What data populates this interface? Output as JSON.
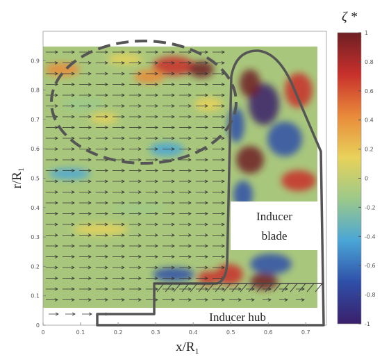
{
  "chart_data": {
    "type": "vector-field",
    "x_label": "x/R₁",
    "y_label": "r/R₁",
    "xlim": [
      0,
      0.755
    ],
    "ylim": [
      0,
      1.0
    ],
    "xticks": [
      0,
      0.1,
      0.2,
      0.3,
      0.4,
      0.5,
      0.6,
      0.7
    ],
    "yticks": [
      0,
      0.1,
      0.2,
      0.3,
      0.4,
      0.5,
      0.6,
      0.7,
      0.8,
      0.9
    ],
    "colorbar_label": "ζ *",
    "clim": [
      -1,
      1
    ],
    "colorbar_ticks": [
      1,
      0.8,
      0.6,
      0.4,
      0.2,
      0,
      -0.2,
      -0.4,
      -0.6,
      -0.8,
      -1
    ],
    "colormap": [
      "#3a1f6a",
      "#2f4fa8",
      "#4aa6d6",
      "#9cc98a",
      "#e8d25a",
      "#e98a3a",
      "#c8302c",
      "#6e1f24"
    ],
    "annotations": {
      "blade": [
        "Inducer",
        "blade"
      ],
      "hub": "Inducer hub"
    }
  }
}
